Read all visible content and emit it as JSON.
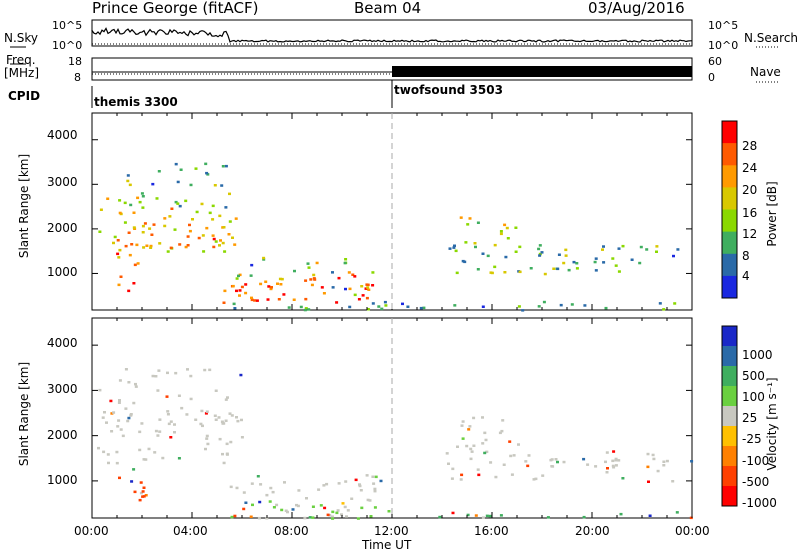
{
  "header": {
    "station": "Prince George (fitACF)",
    "beam": "Beam 04",
    "date": "03/Aug/2016"
  },
  "top_panels": {
    "nsky_label": "N.Sky",
    "nsky_ticks": [
      "10^5",
      "10^0"
    ],
    "nsearch_label": "N.Search",
    "nsearch_ticks": [
      "10^5",
      "10^0"
    ],
    "freq_label_1": "Freq.",
    "freq_label_2": "[MHz]",
    "freq_ticks": [
      "18",
      "8"
    ],
    "nave_label": "Nave",
    "nave_ticks": [
      "60",
      "0"
    ],
    "cpid_label": "CPID",
    "cpid_modes": [
      "themis 3300",
      "twofsound 3503"
    ]
  },
  "chart_data": [
    {
      "type": "heatmap",
      "name": "power-panel",
      "ylabel": "Slant Range [km]",
      "xlabel": "Time UT",
      "ylim": [
        180,
        4600
      ],
      "xlim": [
        0,
        24
      ],
      "yticks": [
        "4000",
        "3000",
        "2000",
        "1000"
      ],
      "xticks": [
        "00:00",
        "04:00",
        "08:00",
        "12:00",
        "16:00",
        "20:00",
        "00:00"
      ],
      "colorbar_label": "Power [dB]",
      "colorbar_ticks": [
        "28",
        "24",
        "20",
        "16",
        "12",
        "8",
        "4"
      ],
      "colorbar_colors": [
        "#ff0000",
        "#ff5a00",
        "#ff9a00",
        "#d8c800",
        "#8ad800",
        "#3fae5f",
        "#2a6aa8",
        "#1a28e0"
      ]
    },
    {
      "type": "heatmap",
      "name": "velocity-panel",
      "ylabel": "Slant Range [km]",
      "xlabel": "Time UT",
      "ylim": [
        180,
        4600
      ],
      "xlim": [
        0,
        24
      ],
      "yticks": [
        "4000",
        "3000",
        "2000",
        "1000"
      ],
      "xticks": [
        "00:00",
        "04:00",
        "08:00",
        "12:00",
        "16:00",
        "20:00",
        "00:00"
      ],
      "colorbar_label": "Velocity [m s⁻¹]",
      "colorbar_ticks": [
        "1000",
        "500",
        "100",
        "25",
        "-25",
        "-100",
        "-500",
        "-1000"
      ],
      "colorbar_colors": [
        "#1a28c8",
        "#2a6aa8",
        "#3fae5f",
        "#6ad040",
        "#c8c8c0",
        "#ffc000",
        "#ff8000",
        "#ff4000",
        "#ff0000"
      ]
    }
  ],
  "axis": {
    "xlabel": "Time UT"
  }
}
